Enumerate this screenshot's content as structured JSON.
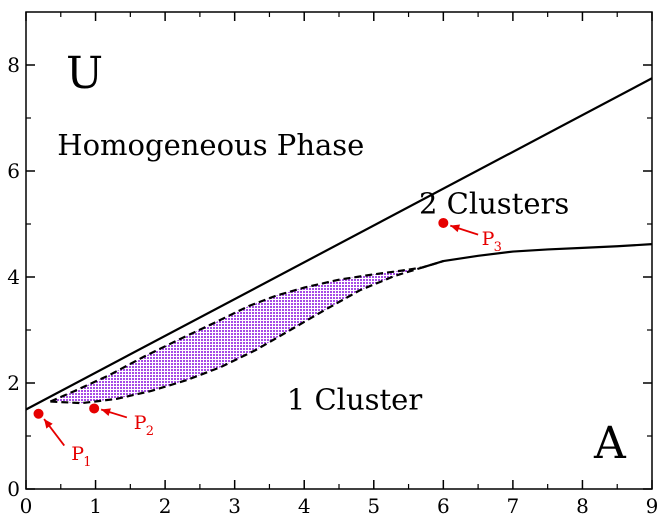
{
  "chart_data": {
    "type": "line",
    "xlim": [
      0,
      9
    ],
    "ylim": [
      0,
      9
    ],
    "x_ticks": [
      0,
      1,
      2,
      3,
      4,
      5,
      6,
      7,
      8,
      9
    ],
    "y_ticks": [
      0,
      2,
      4,
      6,
      8
    ],
    "grid": false,
    "axis_letter_x": "A",
    "axis_letter_y": "U",
    "region_labels": [
      {
        "text": "Homogeneous Phase",
        "x": 0.45,
        "y": 6.3
      },
      {
        "text": "2 Clusters",
        "x": 5.65,
        "y": 5.2
      },
      {
        "text": "1 Cluster",
        "x": 3.75,
        "y": 1.5
      }
    ],
    "series": [
      {
        "style": "solid",
        "x": [
          0,
          9
        ],
        "y": [
          1.5,
          7.75
        ]
      },
      {
        "style": "solid",
        "x": [
          5.7,
          6.0,
          6.5,
          7.0,
          7.5,
          8.0,
          8.5,
          9.0
        ],
        "y": [
          4.18,
          4.3,
          4.4,
          4.48,
          4.52,
          4.55,
          4.58,
          4.62
        ]
      },
      {
        "style": "dashed",
        "x": [
          0.35,
          0.7,
          1.2,
          1.7,
          2.2,
          2.7,
          3.2,
          3.6,
          4.0,
          4.5,
          5.0,
          5.4,
          5.7,
          6.0
        ],
        "y": [
          1.65,
          1.85,
          2.15,
          2.5,
          2.82,
          3.13,
          3.45,
          3.65,
          3.8,
          3.95,
          4.05,
          4.12,
          4.18,
          4.3
        ]
      },
      {
        "style": "dashed",
        "x": [
          0.35,
          0.8,
          1.3,
          1.8,
          2.3,
          2.8,
          3.3,
          3.8,
          4.3,
          4.8,
          5.3,
          5.7
        ],
        "y": [
          1.65,
          1.62,
          1.7,
          1.85,
          2.05,
          2.3,
          2.62,
          3.0,
          3.38,
          3.75,
          4.02,
          4.18
        ]
      }
    ],
    "shaded_region": {
      "color": "#a64ce6",
      "x": [
        0.35,
        0.7,
        1.2,
        1.7,
        2.2,
        2.7,
        3.2,
        3.6,
        4.0,
        4.5,
        5.0,
        5.4,
        5.7,
        5.3,
        4.8,
        4.3,
        3.8,
        3.3,
        2.8,
        2.3,
        1.8,
        1.3,
        0.8
      ],
      "y": [
        1.65,
        1.85,
        2.15,
        2.5,
        2.82,
        3.13,
        3.45,
        3.65,
        3.8,
        3.95,
        4.05,
        4.12,
        4.18,
        4.02,
        3.75,
        3.38,
        3.0,
        2.62,
        2.3,
        2.05,
        1.85,
        1.7,
        1.62
      ]
    },
    "points": [
      {
        "label": "P",
        "sub": "1",
        "x": 0.18,
        "y": 1.42,
        "label_x": 0.65,
        "label_y": 0.55,
        "arrow_from": [
          0.55,
          0.82
        ],
        "arrow_to": [
          0.26,
          1.32
        ]
      },
      {
        "label": "P",
        "sub": "2",
        "x": 0.98,
        "y": 1.52,
        "label_x": 1.55,
        "label_y": 1.13,
        "arrow_from": [
          1.45,
          1.35
        ],
        "arrow_to": [
          1.08,
          1.5
        ]
      },
      {
        "label": "P",
        "sub": "3",
        "x": 6.0,
        "y": 5.02,
        "label_x": 6.55,
        "label_y": 4.6,
        "arrow_from": [
          6.5,
          4.8
        ],
        "arrow_to": [
          6.1,
          4.97
        ]
      }
    ],
    "point_color": "#e60000"
  }
}
